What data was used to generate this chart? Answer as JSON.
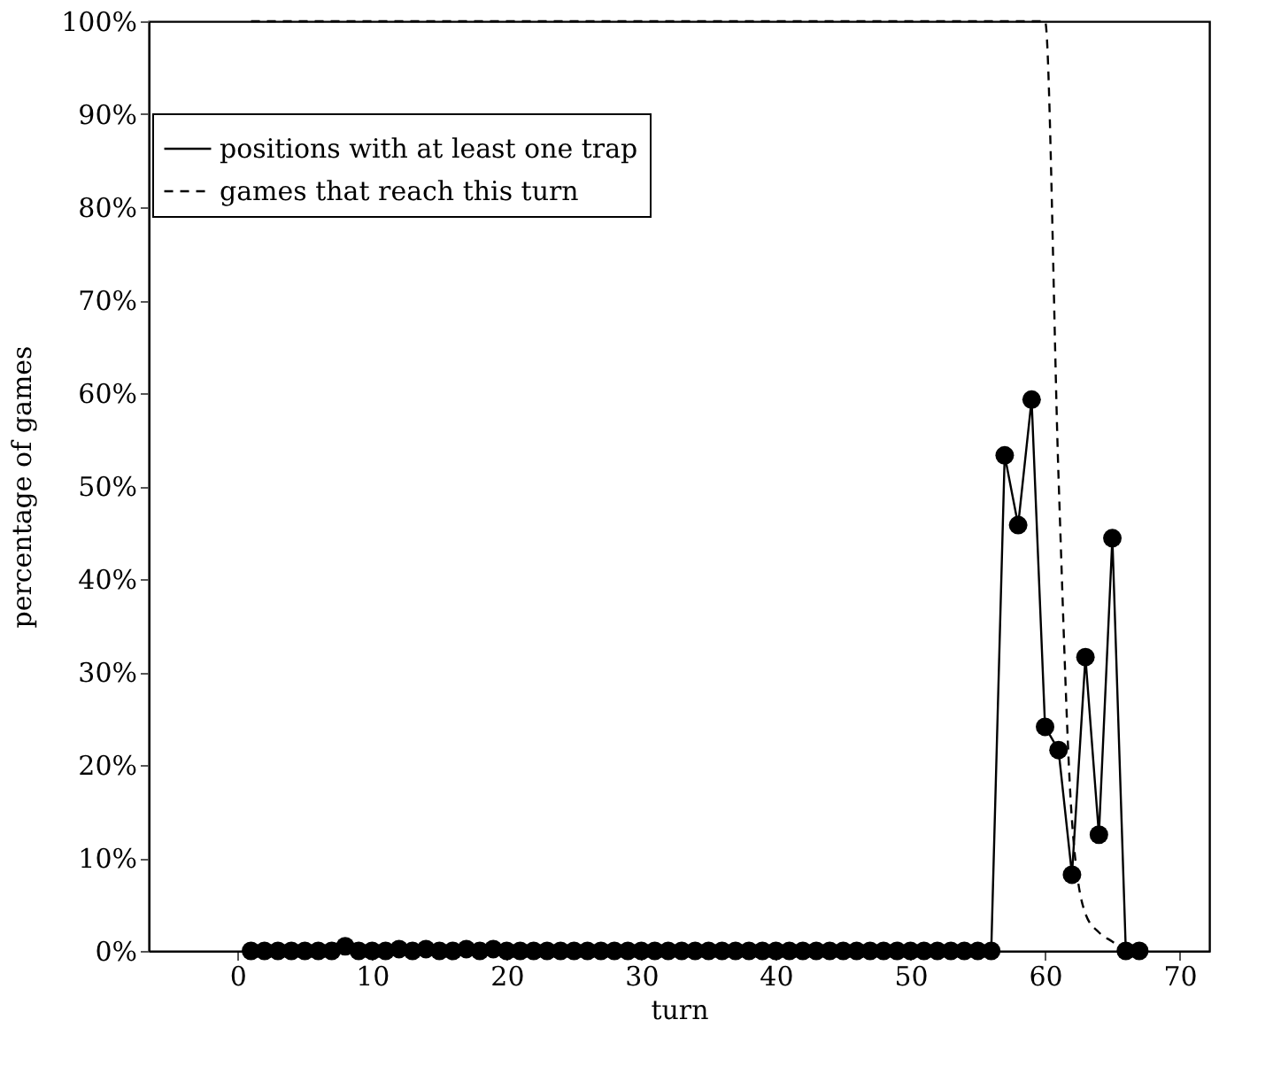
{
  "chart_data": {
    "type": "line",
    "xlabel": "turn",
    "ylabel": "percentage of games",
    "xlim": [
      -6.6,
      72.2
    ],
    "xticks": [
      0,
      10,
      20,
      30,
      40,
      50,
      60,
      70
    ],
    "ylim": [
      0,
      100
    ],
    "yticks": [
      {
        "value": 0,
        "label": "0%"
      },
      {
        "value": 10,
        "label": "10%"
      },
      {
        "value": 20,
        "label": "20%"
      },
      {
        "value": 30,
        "label": "30%"
      },
      {
        "value": 40,
        "label": "40%"
      },
      {
        "value": 50,
        "label": "50%"
      },
      {
        "value": 60,
        "label": "60%"
      },
      {
        "value": 70,
        "label": "70%"
      },
      {
        "value": 80,
        "label": "80%"
      },
      {
        "value": 90,
        "label": "90%"
      },
      {
        "value": 100,
        "label": "100%"
      }
    ],
    "grid": false,
    "legend": "top left",
    "series": [
      {
        "name": "positions with at least one trap",
        "color": "#000000",
        "marker": "circle",
        "line_style": "solid",
        "x": [
          1,
          2,
          3,
          4,
          5,
          6,
          7,
          8,
          9,
          10,
          11,
          12,
          13,
          14,
          15,
          16,
          17,
          18,
          19,
          20,
          21,
          22,
          23,
          24,
          25,
          26,
          27,
          28,
          29,
          30,
          31,
          32,
          33,
          34,
          35,
          36,
          37,
          38,
          39,
          40,
          41,
          42,
          43,
          44,
          45,
          46,
          47,
          48,
          49,
          50,
          51,
          52,
          53,
          54,
          55,
          56,
          57,
          58,
          59,
          60,
          61,
          62,
          63,
          64,
          65,
          66,
          67
        ],
        "values": [
          0,
          0,
          0,
          0,
          0,
          0,
          0,
          0.5,
          0,
          0,
          0,
          0.2,
          0,
          0.2,
          0,
          0,
          0.2,
          0,
          0.2,
          0,
          0,
          0,
          0,
          0,
          0,
          0,
          0,
          0,
          0,
          0,
          0,
          0,
          0,
          0,
          0,
          0,
          0,
          0,
          0,
          0,
          0,
          0,
          0,
          0,
          0,
          0,
          0,
          0,
          0,
          0,
          0,
          0,
          0,
          0,
          0,
          0,
          53.3,
          45.8,
          59.3,
          24.1,
          21.6,
          8.2,
          31.6,
          12.5,
          44.4,
          0,
          0
        ]
      },
      {
        "name": "games that reach this turn",
        "color": "#000000",
        "marker": "none",
        "line_style": "dashed",
        "x": [
          1,
          60,
          61,
          62,
          63,
          64,
          65,
          66
        ],
        "values": [
          100,
          100,
          51,
          14,
          4,
          2,
          1,
          0
        ]
      }
    ]
  }
}
